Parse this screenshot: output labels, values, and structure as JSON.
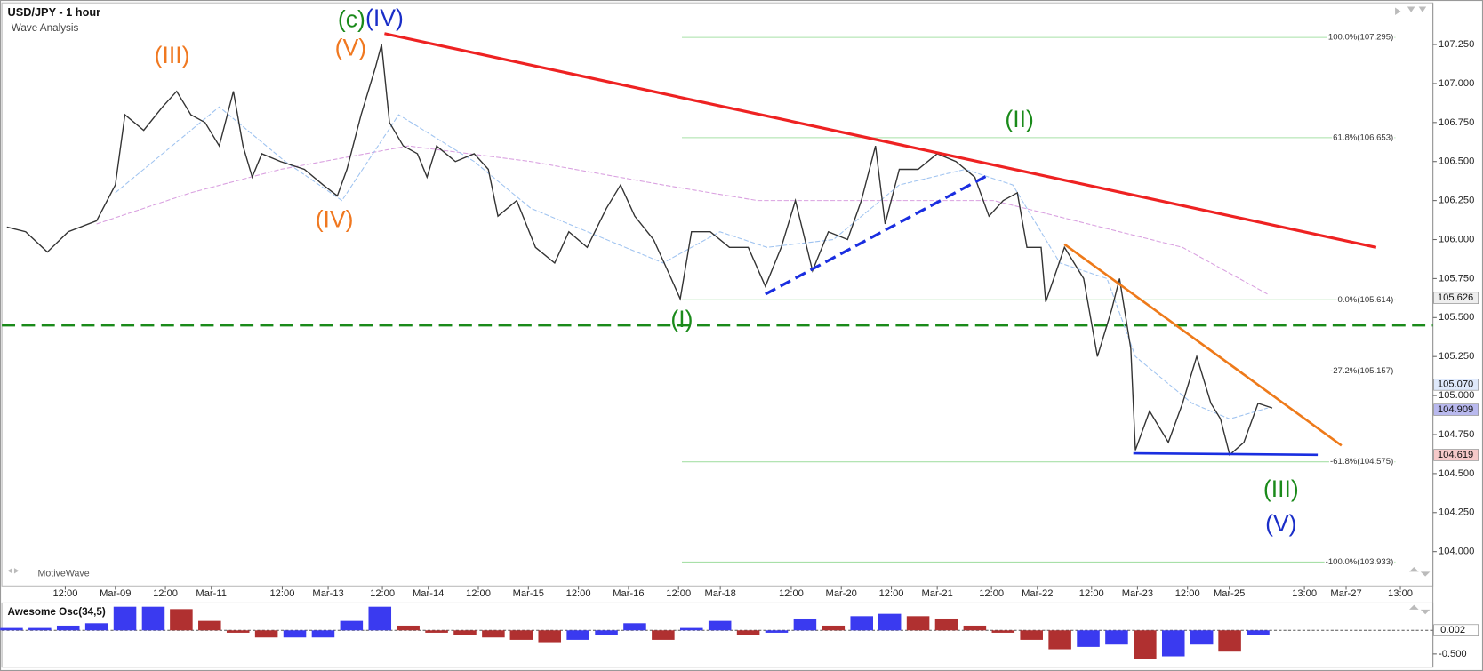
{
  "chart_data": [
    {
      "type": "line",
      "title": "USD/JPY - 1 hour",
      "subtitle": "Wave Analysis",
      "watermark": "MotiveWave",
      "xlim": [
        -3.2,
        339.8
      ],
      "xticks": [
        {
          "value": 12,
          "label": "12:00"
        },
        {
          "value": 24,
          "label": "Mar-09"
        },
        {
          "value": 36,
          "label": "12:00"
        },
        {
          "value": 47,
          "label": "Mar-11"
        },
        {
          "value": 64,
          "label": "12:00"
        },
        {
          "value": 75,
          "label": "Mar-13"
        },
        {
          "value": 88,
          "label": "12:00"
        },
        {
          "value": 99,
          "label": "Mar-14"
        },
        {
          "value": 111,
          "label": "12:00"
        },
        {
          "value": 123,
          "label": "Mar-15"
        },
        {
          "value": 135,
          "label": "12:00"
        },
        {
          "value": 147,
          "label": "Mar-16"
        },
        {
          "value": 159,
          "label": "12:00"
        },
        {
          "value": 169,
          "label": "Mar-18"
        },
        {
          "value": 186,
          "label": "12:00"
        },
        {
          "value": 198,
          "label": "Mar-20"
        },
        {
          "value": 210,
          "label": "12:00"
        },
        {
          "value": 221,
          "label": "Mar-21"
        },
        {
          "value": 234,
          "label": "12:00"
        },
        {
          "value": 245,
          "label": "Mar-22"
        },
        {
          "value": 258,
          "label": "12:00"
        },
        {
          "value": 269,
          "label": "Mar-23"
        },
        {
          "value": 281,
          "label": "12:00"
        },
        {
          "value": 291,
          "label": "Mar-25"
        },
        {
          "value": 309,
          "label": "13:00"
        },
        {
          "value": 319,
          "label": "Mar-27"
        },
        {
          "value": 332,
          "label": "13:00"
        }
      ],
      "ylim": [
        103.78,
        107.535
      ],
      "yticks": [
        {
          "value": 104,
          "label": "104.000"
        },
        {
          "value": 104.25,
          "label": "104.250"
        },
        {
          "value": 104.5,
          "label": "104.500"
        },
        {
          "value": 104.75,
          "label": "104.750"
        },
        {
          "value": 105,
          "label": "105.000"
        },
        {
          "value": 105.25,
          "label": "105.250"
        },
        {
          "value": 105.5,
          "label": "105.500"
        },
        {
          "value": 105.75,
          "label": "105.750"
        },
        {
          "value": 106,
          "label": "106.000"
        },
        {
          "value": 106.25,
          "label": "106.250"
        },
        {
          "value": 106.5,
          "label": "106.500"
        },
        {
          "value": 106.75,
          "label": "106.750"
        },
        {
          "value": 107,
          "label": "107.000"
        },
        {
          "value": 107.25,
          "label": "107.250"
        }
      ],
      "series": [
        {
          "color": "#333333",
          "width": 1.3,
          "x": [
            -2.0,
            2.5,
            7.7,
            12.7,
            19.5,
            24.0,
            26.3,
            30.8,
            35.3,
            38.7,
            42.1,
            45.5,
            48.9,
            52.3,
            54.6,
            56.8,
            59.1,
            63.6,
            69.3,
            73.8,
            77.2,
            79.5,
            82.9,
            86.3,
            87.8,
            89.7,
            93.0,
            96.4,
            98.7,
            101.0,
            105.5,
            110.0,
            113.4,
            115.7,
            120.2,
            124.7,
            129.3,
            132.7,
            137.1,
            141.7,
            145.1,
            148.5,
            153.0,
            156.4,
            159.4,
            162.1,
            166.6,
            171.2,
            175.7,
            179.8,
            183.6,
            187.0,
            191.1,
            194.9,
            199.5,
            202.8,
            206.2,
            208.5,
            211.9,
            216.4,
            221.0,
            225.5,
            230.0,
            233.4,
            236.8,
            240.2,
            242.5,
            245.9,
            247.0,
            251.5,
            256.1,
            259.4,
            262.8,
            264.7,
            267.4,
            268.5,
            271.9,
            276.4,
            279.8,
            283.2,
            286.6,
            288.9,
            291.1,
            294.5,
            297.9,
            301.3
          ],
          "values": [
            106.08,
            106.05,
            105.92,
            106.05,
            106.12,
            106.35,
            106.8,
            106.7,
            106.85,
            106.95,
            106.8,
            106.75,
            106.6,
            106.95,
            106.6,
            106.4,
            106.55,
            106.5,
            106.45,
            106.35,
            106.28,
            106.45,
            106.8,
            107.1,
            107.25,
            106.75,
            106.6,
            106.55,
            106.4,
            106.6,
            106.5,
            106.55,
            106.45,
            106.15,
            106.25,
            105.95,
            105.85,
            106.05,
            105.95,
            106.2,
            106.35,
            106.15,
            106.0,
            105.8,
            105.62,
            106.05,
            106.05,
            105.95,
            105.95,
            105.7,
            105.95,
            106.25,
            105.8,
            106.05,
            106.0,
            106.25,
            106.6,
            106.1,
            106.45,
            106.45,
            106.55,
            106.5,
            106.4,
            106.15,
            106.25,
            106.3,
            105.95,
            105.95,
            105.6,
            105.95,
            105.75,
            105.25,
            105.55,
            105.75,
            105.3,
            104.65,
            104.9,
            104.7,
            104.95,
            105.25,
            104.95,
            104.85,
            104.62,
            104.7,
            104.95,
            104.92
          ]
        },
        {
          "color": "#9fc3f0",
          "width": 1,
          "x": [
            24.0,
            48.9,
            64.7,
            78.3,
            91.9,
            110.0,
            123.6,
            141.7,
            155.3,
            168.9,
            180.2,
            196.1,
            211.9,
            227.7,
            239.1,
            250.4,
            261.7,
            268.5,
            282.1,
            291.1,
            300.2
          ],
          "values": [
            106.3,
            106.85,
            106.5,
            106.25,
            106.8,
            106.5,
            106.2,
            106.0,
            105.85,
            106.05,
            105.95,
            106.0,
            106.35,
            106.45,
            106.35,
            105.85,
            105.75,
            105.25,
            104.95,
            104.85,
            104.92
          ]
        },
        {
          "color": "#d9a0e0",
          "width": 1,
          "x": [
            19.5,
            42.1,
            63.6,
            94.2,
            123.6,
            155.3,
            177.9,
            211.9,
            234.5,
            257.2,
            279.8,
            300.2
          ],
          "values": [
            106.1,
            106.3,
            106.45,
            106.6,
            106.5,
            106.35,
            106.25,
            106.25,
            106.25,
            106.1,
            105.95,
            105.65
          ]
        }
      ],
      "fib_xrange": [
        159.8,
        330.8
      ],
      "fib_color": "#a8e0a8",
      "fib_levels": [
        {
          "label": "100.0%(107.295)",
          "value": 107.295
        },
        {
          "label": "61.8%(106.653)",
          "value": 106.653
        },
        {
          "label": "0.0%(105.614)",
          "value": 105.614
        },
        {
          "label": "-27.2%(105.157)",
          "value": 105.157
        },
        {
          "label": "-61.8%(104.575)",
          "value": 104.575
        },
        {
          "label": "-100.0%(103.933)",
          "value": 103.933
        }
      ],
      "trend_lines": [
        {
          "color": "#ee2222",
          "dash": false,
          "width": 3,
          "x": [
            88.5,
            326.2
          ],
          "values": [
            107.32,
            105.95
          ]
        },
        {
          "color": "#1a2ee0",
          "dash": true,
          "width": 3,
          "x": [
            179.8,
            233.0
          ],
          "values": [
            105.65,
            106.41
          ]
        },
        {
          "color": "#ee7a1a",
          "dash": false,
          "width": 2.5,
          "x": [
            251.5,
            317.9
          ],
          "values": [
            105.97,
            104.68
          ]
        },
        {
          "color": "#1a2ee0",
          "dash": false,
          "width": 2.5,
          "x": [
            268.0,
            312.2
          ],
          "values": [
            104.63,
            104.62
          ]
        }
      ],
      "hline": {
        "value": 105.45,
        "color": "#1a8a1a",
        "dash": true
      },
      "wave_labels": [
        {
          "text": "(III)",
          "color": "#f07820",
          "x": 37.6,
          "value": 107.17
        },
        {
          "text": "(V)",
          "color": "#f07820",
          "x": 80.4,
          "value": 107.22
        },
        {
          "text": "(c)",
          "color": "#1a8a1a",
          "x": 80.6,
          "value": 107.4
        },
        {
          "text": "(IV)",
          "color": "#1a2ec8",
          "x": 88.5,
          "value": 107.41
        },
        {
          "text": "(IV)",
          "color": "#f07820",
          "x": 76.5,
          "value": 106.12
        },
        {
          "text": "(I)",
          "color": "#1a8a1a",
          "x": 159.8,
          "value": 105.48
        },
        {
          "text": "(II)",
          "color": "#1a8a1a",
          "x": 240.7,
          "value": 106.76
        },
        {
          "text": "(III)",
          "color": "#1a8a1a",
          "x": 303.4,
          "value": 104.39
        },
        {
          "text": "(V)",
          "color": "#1a2ec8",
          "x": 303.4,
          "value": 104.17
        }
      ],
      "price_tags": [
        {
          "value": 105.626,
          "label": "105.626",
          "color": "#eeeeee"
        },
        {
          "value": 105.07,
          "label": "105.070",
          "color": "#dfe9fb"
        },
        {
          "value": 104.909,
          "label": "104.909",
          "color": "#b9b9ee"
        },
        {
          "value": 104.619,
          "label": "104.619",
          "color": "#f5c9c9"
        }
      ]
    },
    {
      "type": "bar",
      "title": "Awesome Osc(34,5)",
      "xlim": [
        -3.2,
        339.8
      ],
      "ylim": [
        -0.76,
        0.52
      ],
      "yticks": [
        {
          "value": -0.5,
          "label": "-0.500"
        }
      ],
      "current": {
        "value": 0.002,
        "label": "0.002"
      },
      "up_color": "#3a3af0",
      "down_color": "#b03030",
      "x": [
        -0.9,
        5.9,
        12.7,
        19.5,
        26.3,
        33.1,
        39.8,
        46.6,
        53.4,
        60.2,
        67.0,
        73.8,
        80.6,
        87.4,
        94.2,
        101.0,
        107.8,
        114.6,
        121.3,
        128.1,
        134.9,
        141.7,
        148.5,
        155.3,
        162.1,
        168.9,
        175.7,
        182.5,
        189.3,
        196.1,
        202.9,
        209.6,
        216.4,
        223.2,
        230.0,
        236.8,
        243.6,
        250.4,
        257.2,
        264.0,
        270.8,
        277.6,
        284.4,
        291.1,
        297.9
      ],
      "values": [
        0.05,
        0.05,
        0.1,
        0.15,
        0.5,
        0.5,
        0.45,
        0.2,
        -0.05,
        -0.15,
        -0.15,
        -0.15,
        0.2,
        0.5,
        0.1,
        -0.05,
        -0.1,
        -0.15,
        -0.2,
        -0.25,
        -0.2,
        -0.1,
        0.15,
        -0.2,
        0.05,
        0.2,
        -0.1,
        -0.05,
        0.25,
        0.1,
        0.3,
        0.35,
        0.3,
        0.25,
        0.1,
        -0.05,
        -0.2,
        -0.4,
        -0.35,
        -0.3,
        -0.6,
        -0.55,
        -0.3,
        -0.45,
        -0.1
      ]
    }
  ]
}
